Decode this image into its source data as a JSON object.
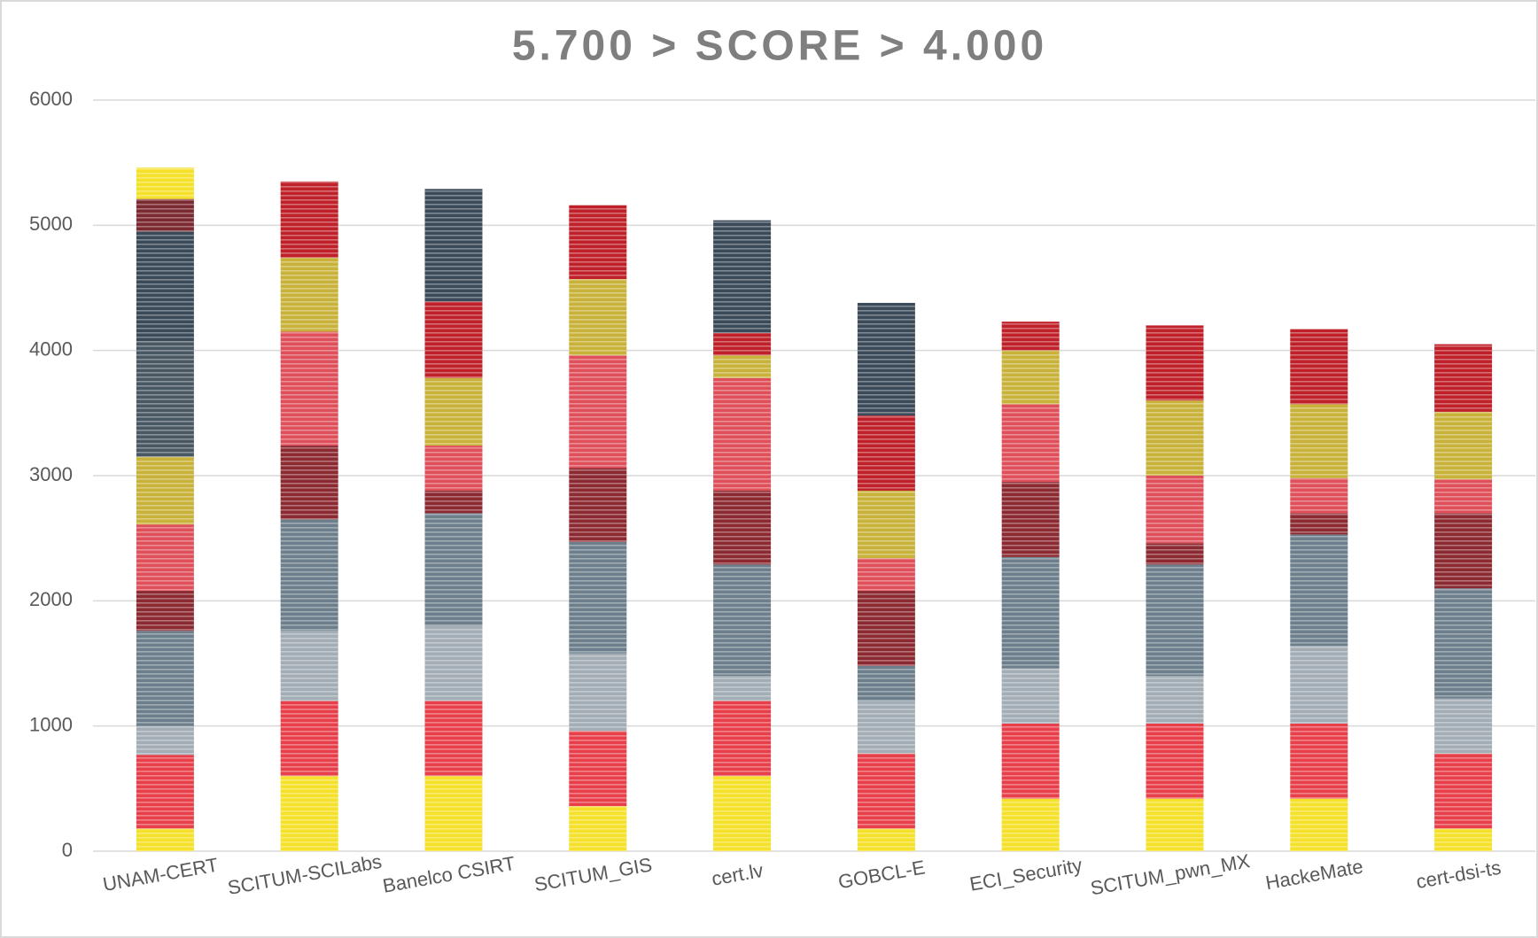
{
  "chart_data": {
    "type": "stacked_bar",
    "title": "5.700 > SCORE > 4.000",
    "categories": [
      "UNAM-CERT",
      "SCITUM-SCILabs",
      "Banelco CSIRT",
      "SCITUM_GIS",
      "cert.lv",
      "GOBCL-E",
      "ECI_Security",
      "SCITUM_pwn_MX",
      "HackeMate",
      "cert-dsi-ts"
    ],
    "stacks": [
      [
        {
          "value": 180,
          "color": "#f5e12a"
        },
        {
          "value": 590,
          "color": "#e8404a"
        },
        {
          "value": 230,
          "color": "#a3adb5"
        },
        {
          "value": 760,
          "color": "#6d7f8c"
        },
        {
          "value": 320,
          "color": "#8c2a32"
        },
        {
          "value": 530,
          "color": "#e0505a"
        },
        {
          "value": 540,
          "color": "#c8b23a"
        },
        {
          "value": 920,
          "color": "#4a5864"
        },
        {
          "value": 880,
          "color": "#3a4a58"
        },
        {
          "value": 260,
          "color": "#7a2a30"
        },
        {
          "value": 250,
          "color": "#f5e12a"
        }
      ],
      [
        {
          "value": 600,
          "color": "#f5e12a"
        },
        {
          "value": 600,
          "color": "#e8404a"
        },
        {
          "value": 560,
          "color": "#a3adb5"
        },
        {
          "value": 890,
          "color": "#6d7f8c"
        },
        {
          "value": 590,
          "color": "#8c2a32"
        },
        {
          "value": 910,
          "color": "#e0505a"
        },
        {
          "value": 590,
          "color": "#c8b23a"
        },
        {
          "value": 610,
          "color": "#c0202a"
        }
      ],
      [
        {
          "value": 600,
          "color": "#f5e12a"
        },
        {
          "value": 600,
          "color": "#e8404a"
        },
        {
          "value": 600,
          "color": "#a3adb5"
        },
        {
          "value": 900,
          "color": "#6d7f8c"
        },
        {
          "value": 180,
          "color": "#8c2a32"
        },
        {
          "value": 360,
          "color": "#e0505a"
        },
        {
          "value": 540,
          "color": "#c8b23a"
        },
        {
          "value": 610,
          "color": "#c0202a"
        },
        {
          "value": 900,
          "color": "#3a4a58"
        }
      ],
      [
        {
          "value": 360,
          "color": "#f5e12a"
        },
        {
          "value": 600,
          "color": "#e8404a"
        },
        {
          "value": 620,
          "color": "#a3adb5"
        },
        {
          "value": 890,
          "color": "#6d7f8c"
        },
        {
          "value": 590,
          "color": "#8c2a32"
        },
        {
          "value": 900,
          "color": "#e0505a"
        },
        {
          "value": 610,
          "color": "#c8b23a"
        },
        {
          "value": 590,
          "color": "#c0202a"
        }
      ],
      [
        {
          "value": 600,
          "color": "#f5e12a"
        },
        {
          "value": 600,
          "color": "#e8404a"
        },
        {
          "value": 200,
          "color": "#a3adb5"
        },
        {
          "value": 890,
          "color": "#6d7f8c"
        },
        {
          "value": 590,
          "color": "#8c2a32"
        },
        {
          "value": 900,
          "color": "#e0505a"
        },
        {
          "value": 180,
          "color": "#c8b23a"
        },
        {
          "value": 180,
          "color": "#c0202a"
        },
        {
          "value": 900,
          "color": "#3a4a58"
        }
      ],
      [
        {
          "value": 180,
          "color": "#f5e12a"
        },
        {
          "value": 600,
          "color": "#e8404a"
        },
        {
          "value": 420,
          "color": "#a3adb5"
        },
        {
          "value": 280,
          "color": "#6d7f8c"
        },
        {
          "value": 600,
          "color": "#8c2a32"
        },
        {
          "value": 260,
          "color": "#e0505a"
        },
        {
          "value": 540,
          "color": "#c8b23a"
        },
        {
          "value": 600,
          "color": "#c0202a"
        },
        {
          "value": 900,
          "color": "#3a4a58"
        }
      ],
      [
        {
          "value": 420,
          "color": "#f5e12a"
        },
        {
          "value": 600,
          "color": "#e8404a"
        },
        {
          "value": 440,
          "color": "#a3adb5"
        },
        {
          "value": 890,
          "color": "#6d7f8c"
        },
        {
          "value": 600,
          "color": "#8c2a32"
        },
        {
          "value": 620,
          "color": "#e0505a"
        },
        {
          "value": 430,
          "color": "#c8b23a"
        },
        {
          "value": 230,
          "color": "#c0202a"
        }
      ],
      [
        {
          "value": 420,
          "color": "#f5e12a"
        },
        {
          "value": 600,
          "color": "#e8404a"
        },
        {
          "value": 380,
          "color": "#a3adb5"
        },
        {
          "value": 890,
          "color": "#6d7f8c"
        },
        {
          "value": 170,
          "color": "#8c2a32"
        },
        {
          "value": 540,
          "color": "#e0505a"
        },
        {
          "value": 600,
          "color": "#c8b23a"
        },
        {
          "value": 600,
          "color": "#c0202a"
        }
      ],
      [
        {
          "value": 420,
          "color": "#f5e12a"
        },
        {
          "value": 600,
          "color": "#e8404a"
        },
        {
          "value": 620,
          "color": "#a3adb5"
        },
        {
          "value": 890,
          "color": "#6d7f8c"
        },
        {
          "value": 170,
          "color": "#8c2a32"
        },
        {
          "value": 280,
          "color": "#e0505a"
        },
        {
          "value": 590,
          "color": "#c8b23a"
        },
        {
          "value": 600,
          "color": "#c0202a"
        }
      ],
      [
        {
          "value": 180,
          "color": "#f5e12a"
        },
        {
          "value": 600,
          "color": "#e8404a"
        },
        {
          "value": 440,
          "color": "#a3adb5"
        },
        {
          "value": 880,
          "color": "#6d7f8c"
        },
        {
          "value": 600,
          "color": "#8c2a32"
        },
        {
          "value": 270,
          "color": "#e0505a"
        },
        {
          "value": 540,
          "color": "#c8b23a"
        },
        {
          "value": 540,
          "color": "#c0202a"
        }
      ]
    ],
    "ylim": [
      0,
      6000
    ],
    "yticks": [
      0,
      1000,
      2000,
      3000,
      4000,
      5000,
      6000
    ],
    "grid": true
  }
}
